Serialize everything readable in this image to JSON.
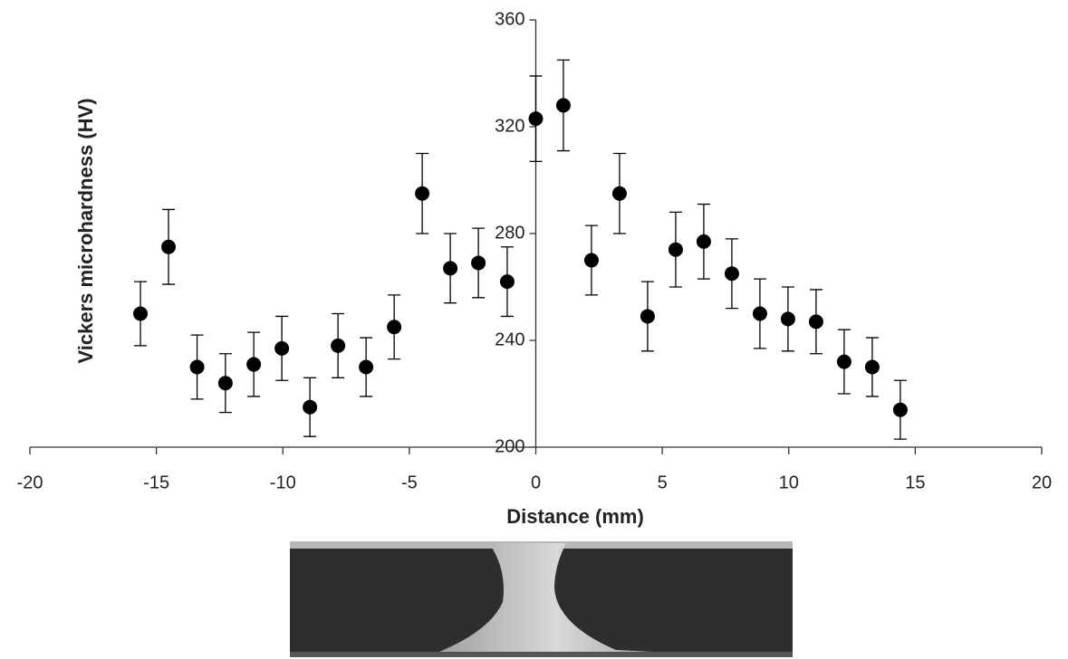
{
  "chart_data": {
    "type": "scatter",
    "x_label": "Distance (mm)",
    "y_label": "Vickers microhardness  (HV)",
    "x": [
      -15.63,
      -14.52,
      -13.39,
      -12.27,
      -11.15,
      -10.04,
      -8.93,
      -7.82,
      -6.71,
      -5.6,
      -4.49,
      -3.38,
      -2.27,
      -1.13,
      0,
      1.09,
      2.2,
      3.31,
      4.42,
      5.53,
      6.64,
      7.75,
      8.86,
      9.97,
      11.08,
      12.19,
      13.3,
      14.41
    ],
    "series": [
      {
        "color": "#000000",
        "values": [
          250,
          275,
          230,
          224,
          231,
          237,
          215,
          238,
          230,
          245,
          295,
          267,
          269,
          262,
          323,
          328,
          270,
          295,
          249,
          274,
          277,
          265,
          250,
          248,
          247,
          232,
          230,
          214
        ],
        "errors": [
          12,
          14,
          12,
          11,
          12,
          12,
          11,
          12,
          11,
          12,
          15,
          13,
          13,
          13,
          16,
          17,
          13,
          15,
          13,
          14,
          14,
          13,
          13,
          12,
          12,
          12,
          11,
          11
        ]
      }
    ],
    "xlim": [
      -20,
      20
    ],
    "xticks": [
      -20,
      -15,
      -10,
      -5,
      0,
      5,
      10,
      15,
      20
    ],
    "ylim": [
      200,
      360
    ],
    "yticks": [
      200,
      240,
      280,
      320,
      360
    ]
  }
}
